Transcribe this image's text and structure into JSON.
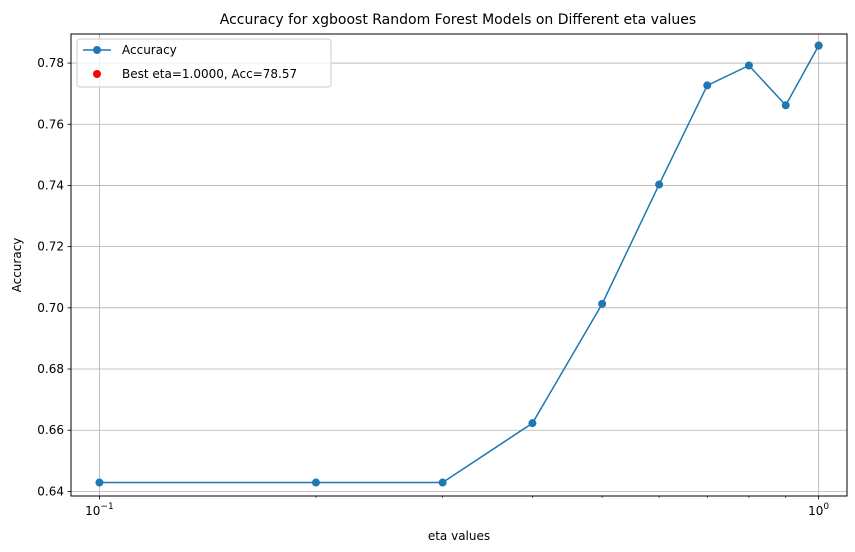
{
  "chart_data": {
    "type": "line",
    "title": "Accuracy for xgboost Random Forest Models on Different eta values",
    "xlabel": "eta values",
    "ylabel": "Accuracy",
    "xscale": "log",
    "xlim": [
      0.0913,
      1.095
    ],
    "ylim": [
      0.6385,
      0.7895
    ],
    "grid": true,
    "legend_position": "top-left",
    "x_major_ticks": [
      {
        "value": 0.1,
        "base": "10",
        "exp": "−1"
      },
      {
        "value": 1.0,
        "base": "10",
        "exp": "0"
      }
    ],
    "y_ticks": [
      0.64,
      0.66,
      0.68,
      0.7,
      0.72,
      0.74,
      0.76,
      0.78
    ],
    "y_tick_labels": [
      "0.64",
      "0.66",
      "0.68",
      "0.70",
      "0.72",
      "0.74",
      "0.76",
      "0.78"
    ],
    "series": [
      {
        "name": "Accuracy",
        "color": "#1f77b4",
        "x": [
          0.1,
          0.2,
          0.3,
          0.4,
          0.5,
          0.6,
          0.7,
          0.8,
          0.9,
          1.0
        ],
        "y": [
          0.6429,
          0.6429,
          0.6429,
          0.6623,
          0.7013,
          0.7403,
          0.7727,
          0.7792,
          0.7662,
          0.7857
        ]
      }
    ],
    "best_point": {
      "name": "Best eta=1.0000, Acc=78.57",
      "color": "#ff0000",
      "x": 1.0,
      "y": 0.7857
    }
  }
}
